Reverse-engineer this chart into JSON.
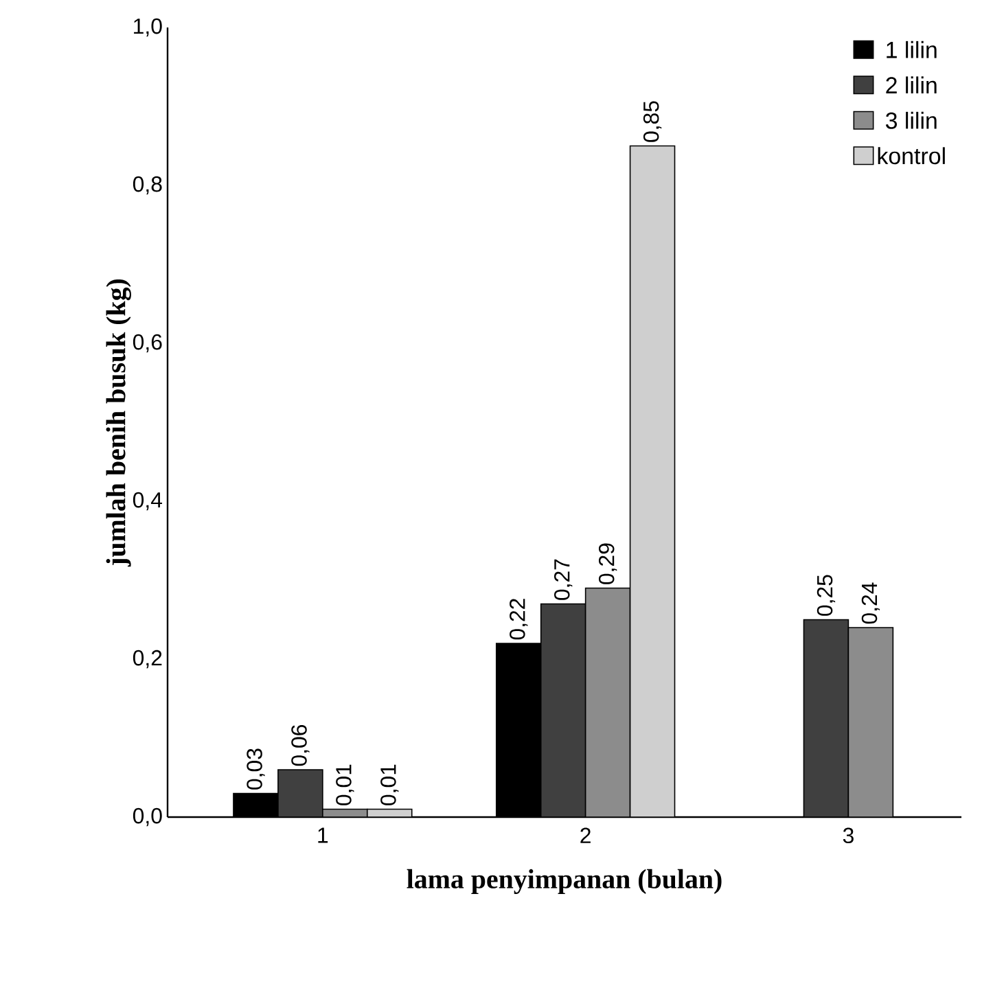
{
  "chart_data": {
    "type": "bar",
    "xlabel": "lama penyimpanan (bulan)",
    "ylabel": "jumlah benih busuk (kg)",
    "categories": [
      "1",
      "2",
      "3"
    ],
    "series": [
      {
        "name": "1 lilin",
        "color": "#000000",
        "values": [
          0.03,
          0.22,
          null
        ],
        "value_labels": [
          "0,03",
          "0,22",
          null
        ]
      },
      {
        "name": "2 lilin",
        "color": "#404040",
        "values": [
          0.06,
          0.27,
          0.25
        ],
        "value_labels": [
          "0,06",
          "0,27",
          "0,25"
        ]
      },
      {
        "name": "3 lilin",
        "color": "#8c8c8c",
        "values": [
          0.01,
          0.29,
          0.24
        ],
        "value_labels": [
          "0,01",
          "0,29",
          "0,24"
        ]
      },
      {
        "name": "kontrol",
        "color": "#cfcfcf",
        "values": [
          0.01,
          0.85,
          null
        ],
        "value_labels": [
          "0,01",
          "0,85",
          null
        ]
      }
    ],
    "ylim": [
      0,
      1
    ],
    "yticks": [
      {
        "value": 0,
        "label": "0,0"
      },
      {
        "value": 0.2,
        "label": "0,2"
      },
      {
        "value": 0.4,
        "label": "0,4"
      },
      {
        "value": 0.6,
        "label": "0,6"
      },
      {
        "value": 0.8,
        "label": "0,8"
      },
      {
        "value": 1,
        "label": "1,0"
      }
    ],
    "grid": false,
    "legend": "top right"
  }
}
